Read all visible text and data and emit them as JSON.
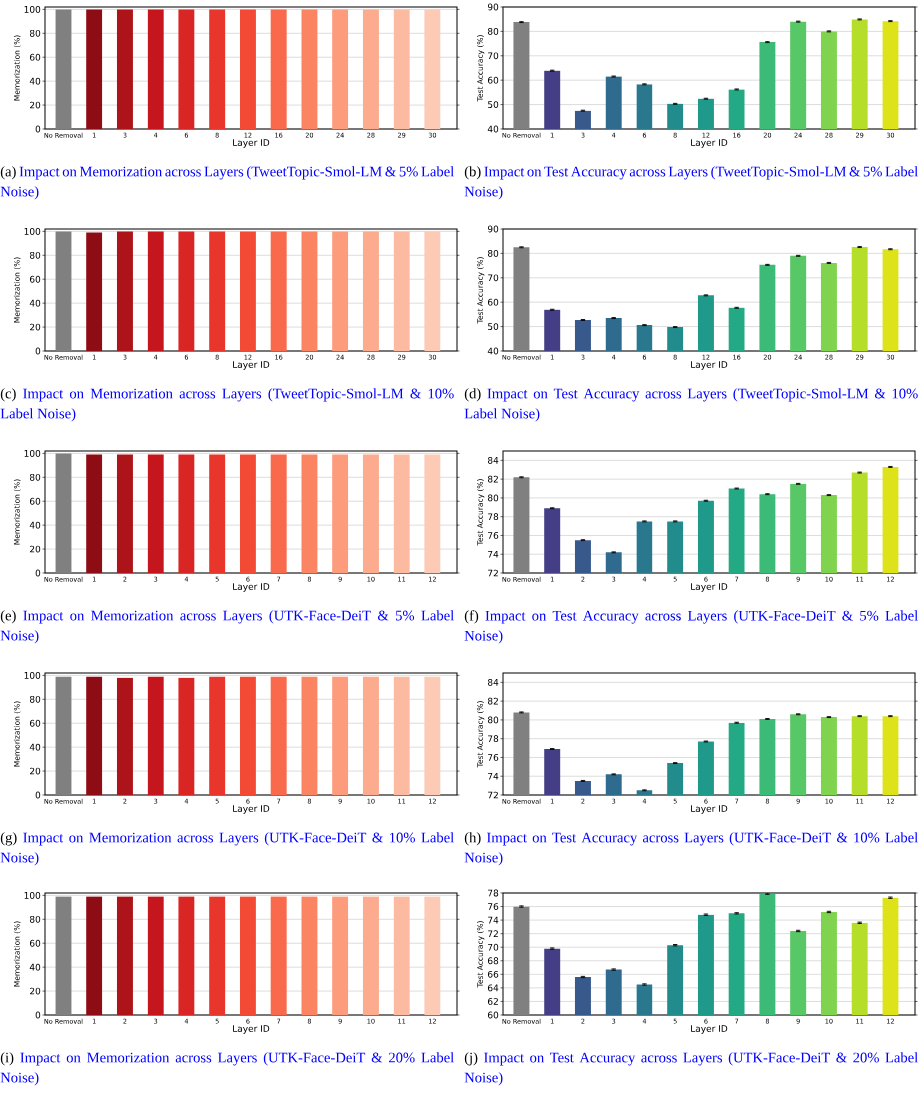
{
  "chart_data": [
    {
      "type": "bar",
      "title": "Impact on Memorization across Layers (TweetTopic-Smol-LM & 5% Label Noise)",
      "subtitle": "(a)",
      "xlabel": "Layer ID",
      "ylabel": "Memorization (%)",
      "categories": [
        "No Removal",
        "1",
        "3",
        "4",
        "6",
        "8",
        "12",
        "16",
        "20",
        "24",
        "28",
        "29",
        "30"
      ],
      "values": [
        100,
        100,
        100,
        100,
        100,
        100,
        100,
        100,
        100,
        100,
        100,
        100,
        100
      ],
      "colors": [
        "#808080",
        "#8e0d15",
        "#ad1419",
        "#c4161c",
        "#d92523",
        "#e9362c",
        "#f24a35",
        "#f9694c",
        "#fb8463",
        "#fc9c7d",
        "#fcab8f",
        "#fcbba1",
        "#fccab5"
      ],
      "ylim": [
        0,
        102
      ],
      "yticks": [
        0,
        20,
        40,
        60,
        80,
        100
      ],
      "grid": "y"
    },
    {
      "type": "bar",
      "title": "Impact on Test Accuracy across Layers (TweetTopic-Smol-LM & 5% Label Noise)",
      "subtitle": "(b)",
      "xlabel": "Layer ID",
      "ylabel": "Test Accuracy (%)",
      "categories": [
        "No Removal",
        "1",
        "3",
        "4",
        "6",
        "8",
        "12",
        "16",
        "20",
        "24",
        "28",
        "29",
        "30"
      ],
      "values": [
        83.8,
        63.9,
        47.5,
        61.5,
        58.3,
        50.3,
        52.4,
        56.2,
        75.6,
        84.0,
        80.0,
        84.9,
        84.2
      ],
      "errors": [
        0.2,
        0.2,
        0.2,
        0.2,
        0.2,
        0.2,
        0.2,
        0.2,
        0.2,
        0.2,
        0.2,
        0.2,
        0.2
      ],
      "colors": [
        "#808080",
        "#433e85",
        "#38598c",
        "#2f6b8e",
        "#29788e",
        "#228c8d",
        "#1f9a8a",
        "#23a983",
        "#3bbb75",
        "#58c765",
        "#7fd34e",
        "#b5de2b",
        "#dde318"
      ],
      "ylim": [
        40,
        90
      ],
      "yticks": [
        40,
        50,
        60,
        70,
        80,
        90
      ],
      "grid": "y"
    },
    {
      "type": "bar",
      "title": "Impact on Memorization across Layers (TweetTopic-Smol-LM & 10% Label Noise)",
      "subtitle": "(c)",
      "xlabel": "Layer ID",
      "ylabel": "Memorization (%)",
      "categories": [
        "No Removal",
        "1",
        "3",
        "4",
        "6",
        "8",
        "12",
        "16",
        "20",
        "24",
        "28",
        "29",
        "30"
      ],
      "values": [
        100,
        99,
        100,
        100,
        100,
        100,
        100,
        100,
        100,
        100,
        100,
        100,
        100
      ],
      "colors": [
        "#808080",
        "#8e0d15",
        "#ad1419",
        "#c4161c",
        "#d92523",
        "#e9362c",
        "#f24a35",
        "#f9694c",
        "#fb8463",
        "#fc9c7d",
        "#fcab8f",
        "#fcbba1",
        "#fccab5"
      ],
      "ylim": [
        0,
        102
      ],
      "yticks": [
        0,
        20,
        40,
        60,
        80,
        100
      ],
      "grid": "y"
    },
    {
      "type": "bar",
      "title": "Impact on Test Accuracy across Layers (TweetTopic-Smol-LM & 10% Label Noise)",
      "subtitle": "(d)",
      "xlabel": "Layer ID",
      "ylabel": "Test Accuracy (%)",
      "categories": [
        "No Removal",
        "1",
        "3",
        "4",
        "6",
        "8",
        "12",
        "16",
        "20",
        "24",
        "28",
        "29",
        "30"
      ],
      "values": [
        82.5,
        56.9,
        52.7,
        53.5,
        50.6,
        49.8,
        62.8,
        57.7,
        75.3,
        79.0,
        76.1,
        82.6,
        81.7
      ],
      "errors": [
        0.2,
        0.2,
        0.2,
        0.2,
        0.2,
        0.2,
        0.2,
        0.2,
        0.2,
        0.2,
        0.2,
        0.2,
        0.2
      ],
      "colors": [
        "#808080",
        "#433e85",
        "#38598c",
        "#2f6b8e",
        "#29788e",
        "#228c8d",
        "#1f9a8a",
        "#23a983",
        "#3bbb75",
        "#58c765",
        "#7fd34e",
        "#b5de2b",
        "#dde318"
      ],
      "ylim": [
        40,
        90
      ],
      "yticks": [
        40,
        50,
        60,
        70,
        80,
        90
      ],
      "grid": "y"
    },
    {
      "type": "bar",
      "title": "Impact on Memorization across Layers (UTK-Face-DeiT & 5% Label Noise)",
      "subtitle": "(e)",
      "xlabel": "Layer ID",
      "ylabel": "Memorization (%)",
      "categories": [
        "No Removal",
        "1",
        "2",
        "3",
        "4",
        "5",
        "6",
        "7",
        "8",
        "9",
        "10",
        "11",
        "12"
      ],
      "values": [
        100,
        99,
        99,
        99,
        99,
        99,
        99,
        99,
        99,
        99,
        99,
        99,
        99
      ],
      "colors": [
        "#808080",
        "#8e0d15",
        "#ad1419",
        "#c4161c",
        "#d92523",
        "#e9362c",
        "#f24a35",
        "#f9694c",
        "#fb8463",
        "#fc9c7d",
        "#fcab8f",
        "#fcbba1",
        "#fccab5"
      ],
      "ylim": [
        0,
        102
      ],
      "yticks": [
        0,
        20,
        40,
        60,
        80,
        100
      ],
      "grid": "y"
    },
    {
      "type": "bar",
      "title": "Impact on Test Accuracy across Layers (UTK-Face-DeiT & 5% Label Noise)",
      "subtitle": "(f)",
      "xlabel": "Layer ID",
      "ylabel": "Test Accuracy (%)",
      "categories": [
        "No Removal",
        "1",
        "2",
        "3",
        "4",
        "5",
        "6",
        "7",
        "8",
        "9",
        "10",
        "11",
        "12"
      ],
      "values": [
        82.2,
        78.9,
        75.5,
        74.2,
        77.5,
        77.5,
        79.7,
        81.0,
        80.4,
        81.5,
        80.3,
        82.7,
        83.3
      ],
      "errors": [
        0.05,
        0.05,
        0.05,
        0.05,
        0.05,
        0.05,
        0.05,
        0.05,
        0.05,
        0.05,
        0.05,
        0.05,
        0.05
      ],
      "colors": [
        "#808080",
        "#433e85",
        "#38598c",
        "#2f6b8e",
        "#29788e",
        "#228c8d",
        "#1f9a8a",
        "#23a983",
        "#3bbb75",
        "#58c765",
        "#7fd34e",
        "#b5de2b",
        "#dde318"
      ],
      "ylim": [
        72,
        85
      ],
      "yticks": [
        72,
        74,
        76,
        78,
        80,
        82,
        84
      ],
      "grid": "y"
    },
    {
      "type": "bar",
      "title": "Impact on Memorization across Layers (UTK-Face-DeiT & 10% Label Noise)",
      "subtitle": "(g)",
      "xlabel": "Layer ID",
      "ylabel": "Memorization (%)",
      "categories": [
        "No Removal",
        "1",
        "2",
        "3",
        "4",
        "5",
        "6",
        "7",
        "8",
        "9",
        "10",
        "11",
        "12"
      ],
      "values": [
        99,
        99,
        98,
        99,
        98,
        99,
        99,
        99,
        99,
        99,
        99,
        99,
        99
      ],
      "colors": [
        "#808080",
        "#8e0d15",
        "#ad1419",
        "#c4161c",
        "#d92523",
        "#e9362c",
        "#f24a35",
        "#f9694c",
        "#fb8463",
        "#fc9c7d",
        "#fcab8f",
        "#fcbba1",
        "#fccab5"
      ],
      "ylim": [
        0,
        102
      ],
      "yticks": [
        0,
        20,
        40,
        60,
        80,
        100
      ],
      "grid": "y"
    },
    {
      "type": "bar",
      "title": "Impact on Test Accuracy across Layers (UTK-Face-DeiT & 10% Label Noise)",
      "subtitle": "(h)",
      "xlabel": "Layer ID",
      "ylabel": "Test Accuracy (%)",
      "categories": [
        "No Removal",
        "1",
        "2",
        "3",
        "4",
        "5",
        "6",
        "7",
        "8",
        "9",
        "10",
        "11",
        "12"
      ],
      "values": [
        80.8,
        76.9,
        73.5,
        74.2,
        72.5,
        75.4,
        77.7,
        79.7,
        80.1,
        80.6,
        80.3,
        80.4,
        80.4
      ],
      "errors": [
        0.05,
        0.05,
        0.05,
        0.05,
        0.05,
        0.05,
        0.05,
        0.05,
        0.05,
        0.05,
        0.05,
        0.05,
        0.05
      ],
      "colors": [
        "#808080",
        "#433e85",
        "#38598c",
        "#2f6b8e",
        "#29788e",
        "#228c8d",
        "#1f9a8a",
        "#23a983",
        "#3bbb75",
        "#58c765",
        "#7fd34e",
        "#b5de2b",
        "#dde318"
      ],
      "ylim": [
        72,
        85
      ],
      "yticks": [
        72,
        74,
        76,
        78,
        80,
        82,
        84
      ],
      "grid": "y"
    },
    {
      "type": "bar",
      "title": "Impact on Memorization across Layers (UTK-Face-DeiT & 20% Label Noise)",
      "subtitle": "(i)",
      "xlabel": "Layer ID",
      "ylabel": "Memorization (%)",
      "categories": [
        "No Removal",
        "1",
        "2",
        "3",
        "4",
        "5",
        "6",
        "7",
        "8",
        "9",
        "10",
        "11",
        "12"
      ],
      "values": [
        99,
        99,
        99,
        99,
        99,
        99,
        99,
        99,
        99,
        99,
        99,
        99,
        99
      ],
      "colors": [
        "#808080",
        "#8e0d15",
        "#ad1419",
        "#c4161c",
        "#d92523",
        "#e9362c",
        "#f24a35",
        "#f9694c",
        "#fb8463",
        "#fc9c7d",
        "#fcab8f",
        "#fcbba1",
        "#fccab5"
      ],
      "ylim": [
        0,
        102
      ],
      "yticks": [
        0,
        20,
        40,
        60,
        80,
        100
      ],
      "grid": "y"
    },
    {
      "type": "bar",
      "title": "Impact on Test Accuracy across Layers (UTK-Face-DeiT & 20% Label Noise)",
      "subtitle": "(j)",
      "xlabel": "Layer ID",
      "ylabel": "Test Accuracy (%)",
      "categories": [
        "No Removal",
        "1",
        "2",
        "3",
        "4",
        "5",
        "6",
        "7",
        "8",
        "9",
        "10",
        "11",
        "12"
      ],
      "values": [
        76.0,
        69.8,
        65.6,
        66.7,
        64.5,
        70.3,
        74.8,
        75.0,
        77.9,
        72.4,
        75.2,
        73.6,
        77.3
      ],
      "errors": [
        0.1,
        0.1,
        0.1,
        0.1,
        0.1,
        0.1,
        0.1,
        0.1,
        0.1,
        0.1,
        0.1,
        0.1,
        0.1
      ],
      "colors": [
        "#808080",
        "#433e85",
        "#38598c",
        "#2f6b8e",
        "#29788e",
        "#228c8d",
        "#1f9a8a",
        "#23a983",
        "#3bbb75",
        "#58c765",
        "#7fd34e",
        "#b5de2b",
        "#dde318"
      ],
      "ylim": [
        60,
        78
      ],
      "yticks": [
        60,
        62,
        64,
        66,
        68,
        70,
        72,
        74,
        76,
        78
      ],
      "grid": "y"
    }
  ]
}
